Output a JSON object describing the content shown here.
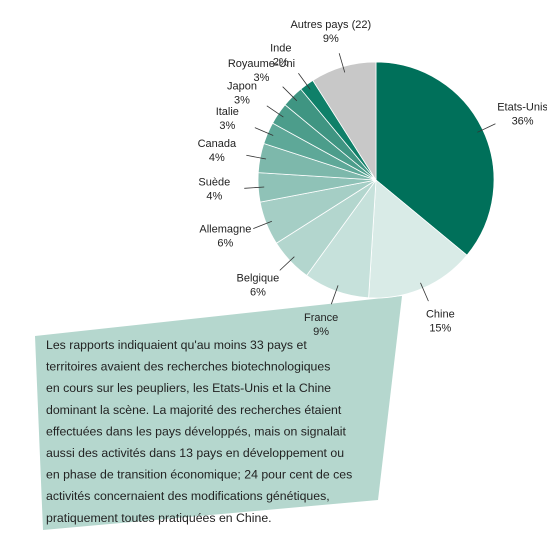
{
  "chart_data": {
    "type": "pie",
    "categories": [
      "Etats-Unis",
      "Chine",
      "France",
      "Belgique",
      "Allemagne",
      "Suède",
      "Canada",
      "Italie",
      "Japon",
      "Royaume-Uni",
      "Inde",
      "Autres pays (22)"
    ],
    "values": [
      36,
      15,
      9,
      6,
      6,
      4,
      4,
      3,
      3,
      3,
      2,
      9
    ],
    "value_labels": [
      "36%",
      "15%",
      "9%",
      "6%",
      "6%",
      "4%",
      "4%",
      "3%",
      "3%",
      "3%",
      "2%",
      "9%"
    ],
    "colors": [
      "#00705a",
      "#d9ebe7",
      "#c6e1db",
      "#b3d6ce",
      "#a5cec5",
      "#8fc2b7",
      "#7db8ab",
      "#5ea898",
      "#4c9d8b",
      "#3f9582",
      "#0f8069",
      "#c8c8c8"
    ],
    "annotation": [
      "Les rapports indiquaient qu'au moins 33 pays et",
      "territoires avaient des recherches biotechnologiques",
      "en cours sur les peupliers, les Etats-Unis et la Chine",
      "dominant la scène. La majorité des recherches étaient",
      "effectuées dans les pays développés, mais on signalait",
      "aussi des activités dans 13 pays en développement ou",
      "en phase de transition économique; 24 pour cent de ces",
      "activités concernaient des modifications génétiques,",
      "pratiquement toutes pratiquées en Chine."
    ],
    "annotation_color": "#b5d7ce"
  }
}
